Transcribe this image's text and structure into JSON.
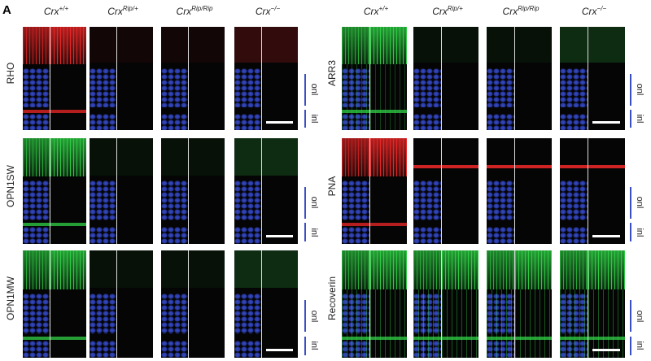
{
  "panel_label": "A",
  "groups": [
    {
      "columns": [
        {
          "name": "Crx",
          "sup": "+/+"
        },
        {
          "name": "Crx",
          "sup": "Rip/+"
        },
        {
          "name": "Crx",
          "sup": "Rip/Rip"
        },
        {
          "name": "Crx",
          "sup": "−/−"
        }
      ],
      "rows": [
        {
          "label": "RHO",
          "layers": [
            "onl",
            "inl"
          ]
        },
        {
          "label": "OPN1SW",
          "layers": [
            "onl",
            "inl"
          ]
        },
        {
          "label": "OPN1MW",
          "layers": [
            "onl",
            "inl"
          ]
        }
      ]
    },
    {
      "columns": [
        {
          "name": "Crx",
          "sup": "+/+"
        },
        {
          "name": "Crx",
          "sup": "Rip/+"
        },
        {
          "name": "Crx",
          "sup": "Rip/Rip"
        },
        {
          "name": "Crx",
          "sup": "−/−"
        }
      ],
      "rows": [
        {
          "label": "ARR3",
          "layers": [
            "onl",
            "inl"
          ]
        },
        {
          "label": "PNA",
          "layers": [
            "onl",
            "inl"
          ]
        },
        {
          "label": "Recoverin",
          "layers": [
            "onl",
            "inl"
          ]
        }
      ]
    }
  ]
}
